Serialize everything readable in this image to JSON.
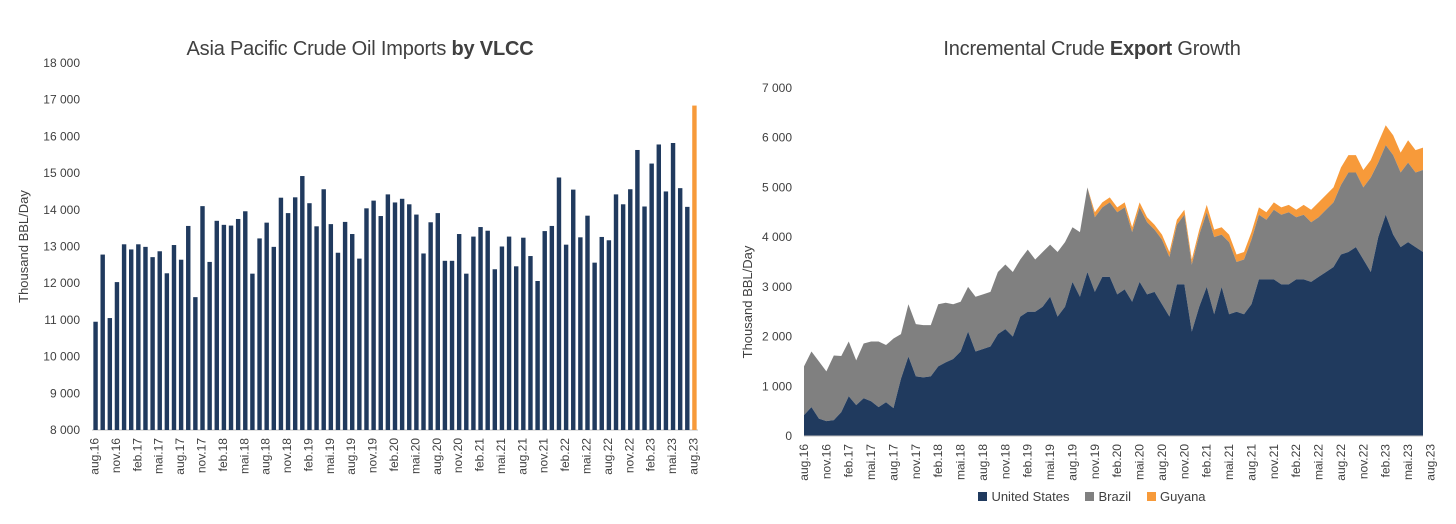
{
  "colors": {
    "navy": "#203A5E",
    "gray": "#808080",
    "orange": "#F79A3A",
    "axis": "#bfbfbf"
  },
  "chart_data": [
    {
      "type": "bar",
      "title_plain": "Asia Pacific Crude Oil Imports ",
      "title_bold": "by VLCC",
      "ylabel": "Thousand BBL/Day",
      "ylim": [
        8000,
        18000
      ],
      "yticks": [
        8000,
        9000,
        10000,
        11000,
        12000,
        13000,
        14000,
        15000,
        16000,
        17000,
        18000
      ],
      "ytick_labels": [
        "8 000",
        "9 000",
        "10 000",
        "11 000",
        "12 000",
        "13 000",
        "14 000",
        "15 000",
        "16 000",
        "17 000",
        "18 000"
      ],
      "xtick_labels": [
        "aug.16",
        "nov.16",
        "feb.17",
        "mai.17",
        "aug.17",
        "nov.17",
        "feb.18",
        "mai.18",
        "aug.18",
        "nov.18",
        "feb.19",
        "mai.19",
        "aug.19",
        "nov.19",
        "feb.20",
        "mai.20",
        "aug.20",
        "nov.20",
        "feb.21",
        "mai.21",
        "aug.21",
        "nov.21",
        "feb.22",
        "mai.22",
        "aug.22",
        "nov.22",
        "feb.23",
        "mai.23",
        "aug.23"
      ],
      "highlight_last": true,
      "values": [
        10950,
        12780,
        11050,
        12030,
        13060,
        12920,
        13060,
        12990,
        12710,
        12870,
        12270,
        13040,
        12640,
        13560,
        11620,
        14100,
        12580,
        13700,
        13590,
        13570,
        13750,
        13960,
        12260,
        13220,
        13650,
        12990,
        14330,
        13910,
        14340,
        14920,
        14180,
        13550,
        14560,
        13610,
        12830,
        13670,
        13340,
        12670,
        14040,
        14250,
        13830,
        14420,
        14200,
        14300,
        14150,
        13870,
        12810,
        13660,
        13910,
        12610,
        12610,
        13340,
        12260,
        13270,
        13530,
        13430,
        12380,
        13000,
        13270,
        12460,
        13240,
        12740,
        12060,
        13420,
        13560,
        14880,
        13050,
        14550,
        13250,
        13840,
        12560,
        13260,
        13170,
        14420,
        14150,
        14560,
        15630,
        14090,
        15260,
        15780,
        14500,
        15820,
        14590,
        14080,
        16840
      ]
    },
    {
      "type": "area",
      "stacked": true,
      "title_plain": "Incremental Crude ",
      "title_bold": "Export",
      "title_end": " Growth",
      "ylabel": "Thousand BBL/Day",
      "ylim": [
        0,
        7000
      ],
      "yticks": [
        0,
        1000,
        2000,
        3000,
        4000,
        5000,
        6000,
        7000
      ],
      "ytick_labels": [
        "0",
        "1 000",
        "2 000",
        "3 000",
        "4 000",
        "5 000",
        "6 000",
        "7 000"
      ],
      "xtick_labels": [
        "aug.16",
        "nov.16",
        "feb.17",
        "mai.17",
        "aug.17",
        "nov.17",
        "feb.18",
        "mai.18",
        "aug.18",
        "nov.18",
        "feb.19",
        "mai.19",
        "aug.19",
        "nov.19",
        "feb.20",
        "mai.20",
        "aug.20",
        "nov.20",
        "feb.21",
        "mai.21",
        "aug.21",
        "nov.21",
        "feb.22",
        "mai.22",
        "aug.22",
        "nov.22",
        "feb.23",
        "mai.23",
        "aug.23"
      ],
      "legend": [
        "United States",
        "Brazil",
        "Guyana"
      ],
      "series": [
        {
          "name": "United States",
          "values": [
            420,
            580,
            350,
            300,
            320,
            480,
            800,
            620,
            760,
            700,
            580,
            680,
            560,
            1150,
            1600,
            1200,
            1180,
            1200,
            1400,
            1480,
            1550,
            1700,
            2100,
            1700,
            1750,
            1800,
            2050,
            2150,
            2000,
            2400,
            2500,
            2500,
            2600,
            2800,
            2400,
            2600,
            3100,
            2800,
            3300,
            2900,
            3200,
            3200,
            2850,
            2950,
            2700,
            3100,
            2850,
            2900,
            2650,
            2400,
            3050,
            3050,
            2100,
            2600,
            3000,
            2450,
            3000,
            2450,
            2500,
            2450,
            2650,
            3150,
            3150,
            3150,
            3050,
            3050,
            3150,
            3150,
            3100,
            3200,
            3300,
            3400,
            3650,
            3700,
            3800,
            3550,
            3300,
            4000,
            4450,
            4050,
            3800,
            3900,
            3800,
            3700
          ]
        },
        {
          "name": "Brazil",
          "values": [
            980,
            1120,
            1150,
            1000,
            1300,
            1130,
            1100,
            900,
            1100,
            1200,
            1320,
            1150,
            1400,
            900,
            1050,
            1050,
            1050,
            1030,
            1250,
            1200,
            1100,
            1000,
            900,
            1100,
            1100,
            1100,
            1250,
            1300,
            1300,
            1150,
            1250,
            1050,
            1100,
            1050,
            1300,
            1300,
            1100,
            1300,
            1700,
            1500,
            1400,
            1500,
            1650,
            1650,
            1400,
            1500,
            1450,
            1250,
            1300,
            1200,
            1200,
            1400,
            1350,
            1450,
            1500,
            1550,
            1050,
            1450,
            1000,
            1100,
            1300,
            1300,
            1200,
            1400,
            1400,
            1450,
            1250,
            1300,
            1200,
            1200,
            1250,
            1300,
            1400,
            1600,
            1500,
            1450,
            1900,
            1500,
            1400,
            1600,
            1500,
            1600,
            1500,
            1650
          ]
        },
        {
          "name": "Guyana",
          "values": [
            0,
            0,
            0,
            0,
            0,
            0,
            0,
            0,
            0,
            0,
            0,
            0,
            0,
            0,
            0,
            0,
            0,
            0,
            0,
            0,
            0,
            0,
            0,
            0,
            0,
            0,
            0,
            0,
            0,
            0,
            0,
            0,
            0,
            0,
            0,
            0,
            0,
            0,
            0,
            100,
            100,
            100,
            100,
            100,
            100,
            100,
            100,
            100,
            100,
            100,
            100,
            100,
            100,
            100,
            150,
            150,
            150,
            150,
            150,
            150,
            150,
            150,
            150,
            150,
            150,
            150,
            150,
            200,
            250,
            300,
            300,
            300,
            350,
            350,
            350,
            350,
            350,
            400,
            400,
            400,
            400,
            450,
            450,
            450
          ]
        }
      ]
    }
  ]
}
